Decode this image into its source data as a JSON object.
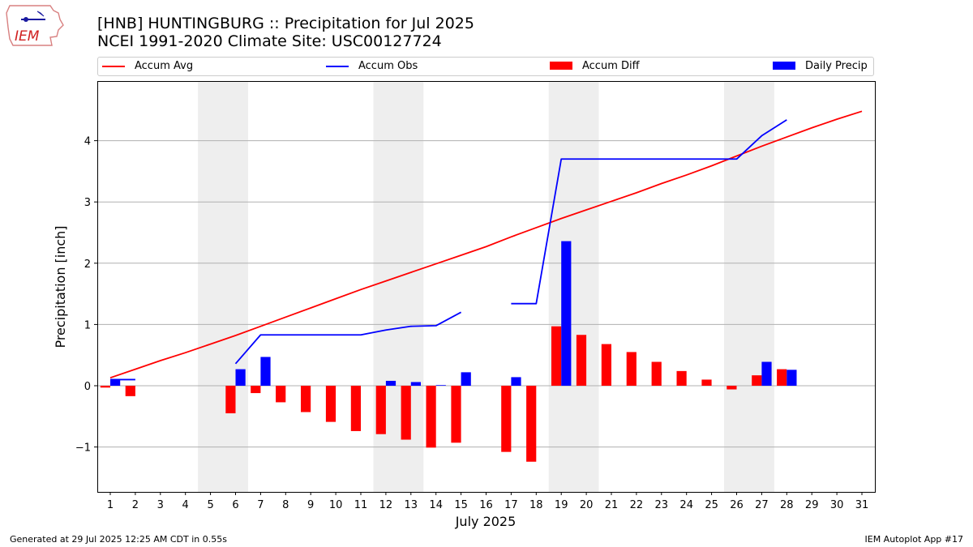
{
  "header": {
    "logo_text": "IEM",
    "title_line1": "[HNB] HUNTINGBURG :: Precipitation for Jul 2025",
    "title_line2": "NCEI 1991-2020 Climate Site: USC00127724"
  },
  "footer": {
    "generated": "Generated at 29 Jul 2025 12:25 AM CDT in 0.55s",
    "app": "IEM Autoplot App #17"
  },
  "colors": {
    "accum_avg": "#ff0000",
    "accum_obs": "#0000ff",
    "accum_diff": "#ff0000",
    "daily_precip": "#0000ff",
    "weekend_shade": "#eeeeee",
    "grid": "#b0b0b0"
  },
  "chart_data": {
    "type": "bar",
    "xlabel": "July 2025",
    "ylabel": "Precipitation [inch]",
    "ylim": [
      -1.7,
      4.95
    ],
    "yticks": [
      -1,
      0,
      1,
      2,
      3,
      4
    ],
    "ytick_labels": [
      "−1",
      "0",
      "1",
      "2",
      "3",
      "4"
    ],
    "grid": "horizontal",
    "legend_position": "top",
    "legend": [
      "Accum Avg",
      "Accum Obs",
      "Accum Diff",
      "Daily Precip"
    ],
    "days": [
      1,
      2,
      3,
      4,
      5,
      6,
      7,
      8,
      9,
      10,
      11,
      12,
      13,
      14,
      15,
      16,
      17,
      18,
      19,
      20,
      21,
      22,
      23,
      24,
      25,
      26,
      27,
      28,
      29,
      30,
      31
    ],
    "weekend_days": [
      5,
      6,
      12,
      13,
      19,
      20,
      26,
      27
    ],
    "series": [
      {
        "name": "Accum Avg",
        "type": "line",
        "color": "#ff0000",
        "values": [
          0.13,
          0.27,
          0.41,
          0.54,
          0.68,
          0.82,
          0.97,
          1.12,
          1.27,
          1.42,
          1.57,
          1.71,
          1.85,
          1.99,
          2.13,
          2.27,
          2.43,
          2.58,
          2.73,
          2.87,
          3.01,
          3.15,
          3.3,
          3.44,
          3.59,
          3.75,
          3.91,
          4.06,
          4.21,
          4.35,
          4.48
        ]
      },
      {
        "name": "Accum Obs",
        "type": "line",
        "color": "#0000ff",
        "values": [
          0.1,
          0.1,
          null,
          null,
          null,
          0.36,
          0.83,
          0.83,
          0.83,
          0.83,
          0.83,
          0.91,
          0.97,
          0.98,
          1.2,
          null,
          1.34,
          1.34,
          3.7,
          3.7,
          3.7,
          3.7,
          3.7,
          3.7,
          3.7,
          3.7,
          4.08,
          4.34,
          null,
          null,
          null
        ]
      },
      {
        "name": "Accum Diff",
        "type": "bar",
        "color": "#ff0000",
        "values": [
          -0.03,
          -0.17,
          null,
          null,
          null,
          -0.45,
          -0.12,
          -0.27,
          -0.43,
          -0.59,
          -0.74,
          -0.79,
          -0.88,
          -1.01,
          -0.93,
          null,
          -1.08,
          -1.24,
          0.97,
          0.83,
          0.68,
          0.55,
          0.39,
          0.24,
          0.1,
          -0.06,
          0.17,
          0.27,
          null,
          null,
          null
        ]
      },
      {
        "name": "Daily Precip",
        "type": "bar",
        "color": "#0000ff",
        "values": [
          0.1,
          0,
          null,
          null,
          null,
          0.27,
          0.47,
          0,
          0,
          0,
          0,
          0.08,
          0.06,
          0.01,
          0.22,
          null,
          0.14,
          0,
          2.36,
          0,
          0,
          0,
          0,
          0,
          0,
          0,
          0.39,
          0.26,
          null,
          null,
          null
        ]
      }
    ]
  }
}
